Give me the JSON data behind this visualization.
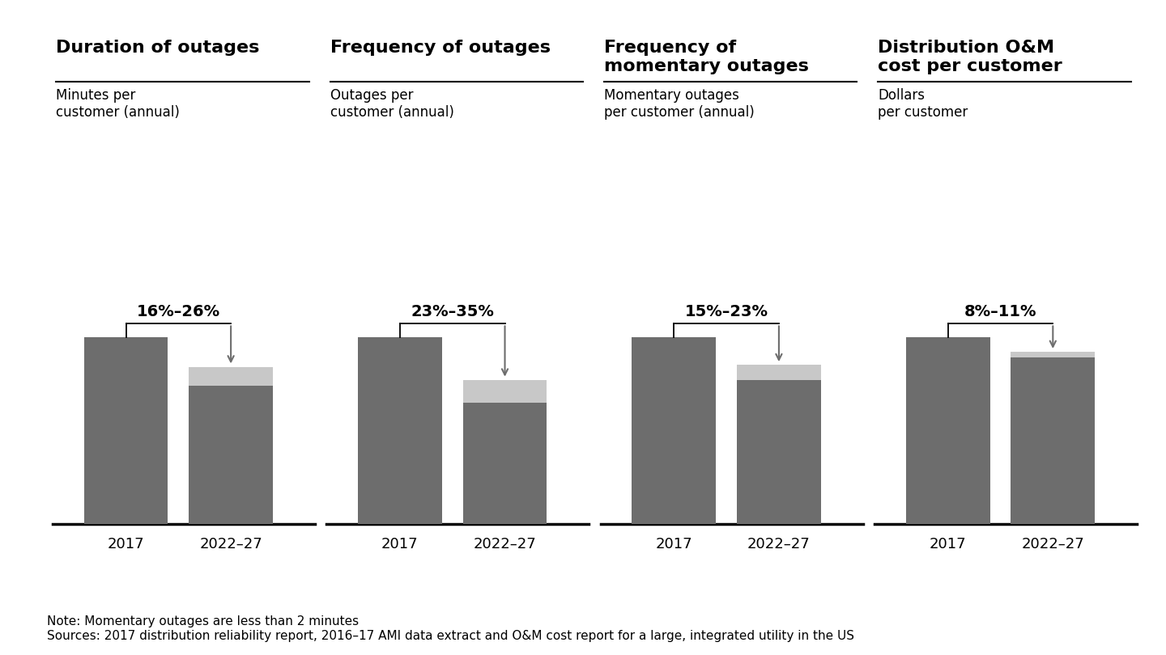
{
  "charts": [
    {
      "title": "Duration of outages",
      "subtitle": "Minutes per\ncustomer (annual)",
      "pct_label": "16%–26%",
      "bar_2017": 1.0,
      "bar_2022_low": 0.74,
      "bar_2022_high": 0.84
    },
    {
      "title": "Frequency of outages",
      "subtitle": "Outages per\ncustomer (annual)",
      "pct_label": "23%–35%",
      "bar_2017": 1.0,
      "bar_2022_low": 0.65,
      "bar_2022_high": 0.77
    },
    {
      "title": "Frequency of\nmomentary outages",
      "subtitle": "Momentary outages\nper customer (annual)",
      "pct_label": "15%–23%",
      "bar_2017": 1.0,
      "bar_2022_low": 0.77,
      "bar_2022_high": 0.85
    },
    {
      "title": "Distribution O&M\ncost per customer",
      "subtitle": "Dollars\nper customer",
      "pct_label": "8%–11%",
      "bar_2017": 1.0,
      "bar_2022_low": 0.89,
      "bar_2022_high": 0.92
    }
  ],
  "bar_color_dark": "#6d6d6d",
  "bar_color_light": "#c8c8c8",
  "bar_width": 0.32,
  "arrow_color": "#6d6d6d",
  "note_text": "Note: Momentary outages are less than 2 minutes\nSources: 2017 distribution reliability report, 2016–17 AMI data extract and O&M cost report for a large, integrated utility in the US",
  "background_color": "#ffffff",
  "title_fontsize": 16,
  "subtitle_fontsize": 12,
  "pct_fontsize": 14,
  "tick_fontsize": 13,
  "note_fontsize": 11
}
